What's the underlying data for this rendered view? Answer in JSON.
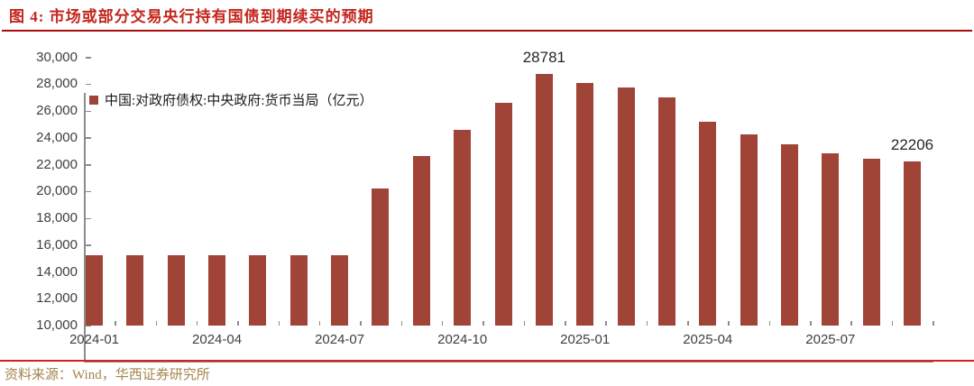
{
  "header": {
    "title": "图 4: 市场或部分交易央行持有国债到期续买的预期"
  },
  "legend": {
    "label": "中国:对政府债权:中央政府:货币当局（亿元）"
  },
  "footer": {
    "source": "资料来源：Wind，华西证券研究所"
  },
  "colors": {
    "bar": "#A04438",
    "title_red": "#C3261E",
    "title_rule": "#AA0B0B",
    "footer_rule": "#DE1D1D",
    "footer_text": "#A5854E",
    "axis": "#8C8C8C",
    "tick_label": "#3F3F3F"
  },
  "chart_data": {
    "type": "bar",
    "title": "图 4: 市场或部分交易央行持有国债到期续买的预期",
    "legend_entries": [
      "中国:对政府债权:中央政府:货币当局（亿元）"
    ],
    "legend_position": "top-left",
    "grid": false,
    "ylim": [
      10000,
      30000
    ],
    "ytick_step": 2000,
    "ytick_labels": [
      "10,000",
      "12,000",
      "14,000",
      "16,000",
      "18,000",
      "20,000",
      "22,000",
      "24,000",
      "26,000",
      "28,000",
      "30,000"
    ],
    "categories": [
      "2024-01",
      "2024-02",
      "2024-03",
      "2024-04",
      "2024-05",
      "2024-06",
      "2024-07",
      "2024-08",
      "2024-09",
      "2024-10",
      "2024-11",
      "2024-12",
      "2025-01",
      "2025-02",
      "2025-03",
      "2025-04",
      "2025-05",
      "2025-06",
      "2025-07",
      "2025-08",
      "2025-09"
    ],
    "values": [
      15241,
      15241,
      15241,
      15241,
      15241,
      15241,
      15241,
      20241,
      22607,
      24603,
      26603,
      28781,
      28100,
      27770,
      27000,
      25180,
      24280,
      23480,
      22835,
      22450,
      22206
    ],
    "xtick_shown": {
      "indices": [
        0,
        3,
        6,
        9,
        12,
        15,
        18
      ],
      "labels": [
        "2024-01",
        "2024-04",
        "2024-07",
        "2024-10",
        "2025-01",
        "2025-04",
        "2025-07"
      ]
    },
    "annotations": [
      {
        "index": 11,
        "text": "28781"
      },
      {
        "index": 20,
        "text": "22206"
      }
    ]
  }
}
